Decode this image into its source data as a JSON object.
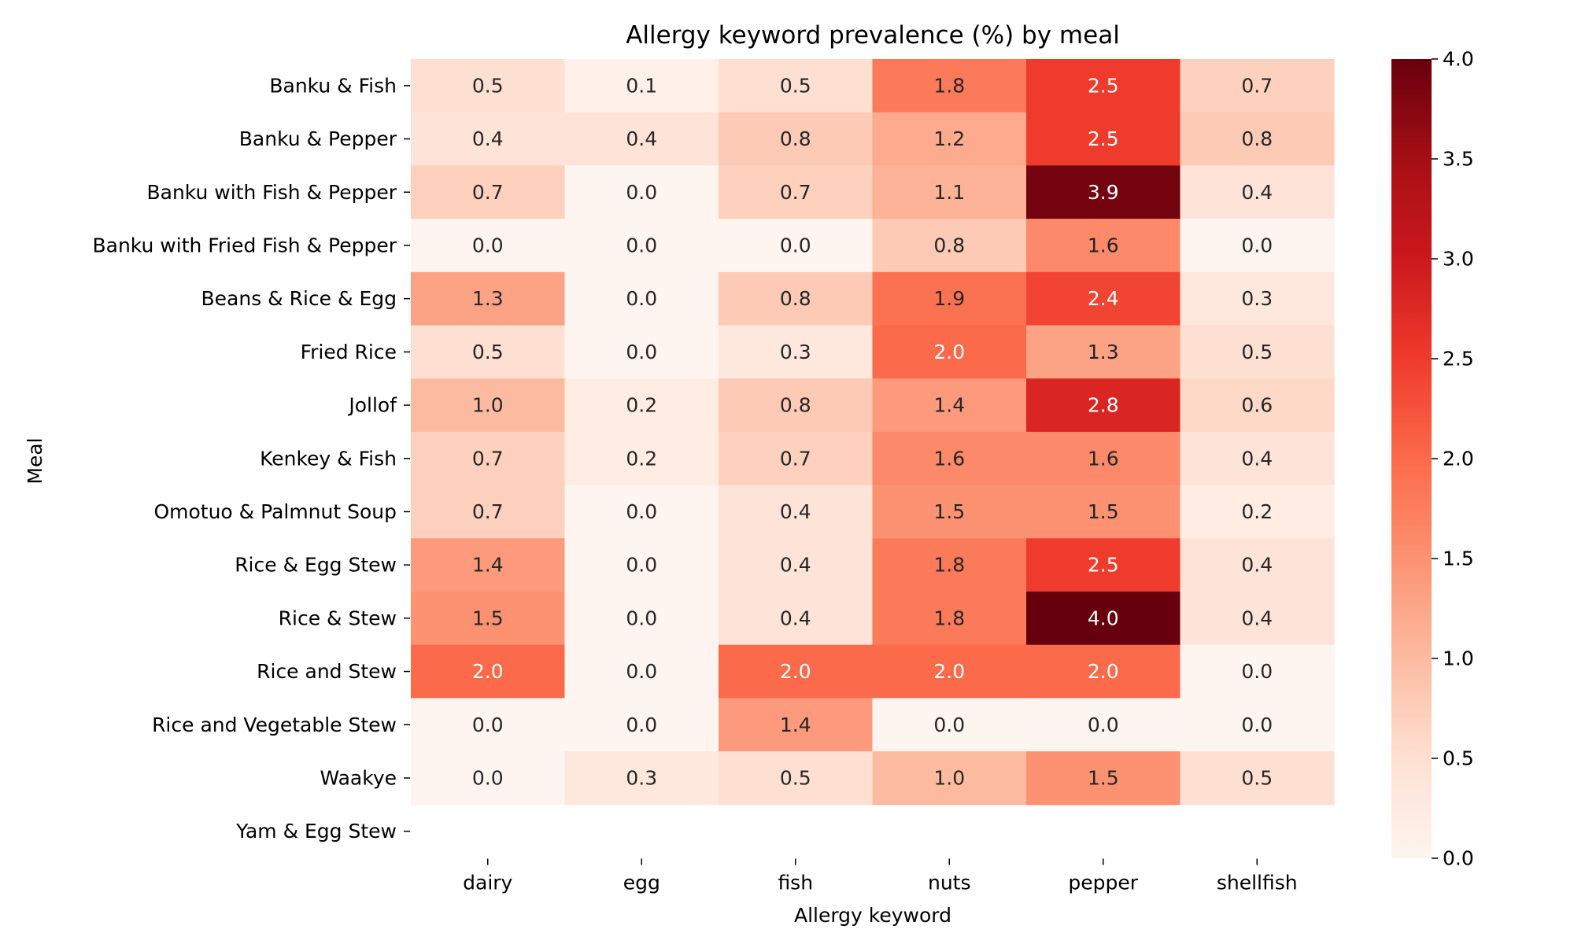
{
  "chart_data": {
    "type": "heatmap",
    "title": "Allergy keyword prevalence (%) by meal",
    "xlabel": "Allergy keyword",
    "ylabel": "Meal",
    "columns": [
      "dairy",
      "egg",
      "fish",
      "nuts",
      "pepper",
      "shellfish"
    ],
    "rows": [
      "Banku & Fish",
      "Banku & Pepper",
      "Banku with Fish & Pepper",
      "Banku with Fried Fish & Pepper",
      "Beans & Rice & Egg",
      "Fried Rice",
      "Jollof",
      "Kenkey & Fish",
      "Omotuo & Palmnut Soup",
      "Rice & Egg Stew",
      "Rice & Stew",
      "Rice and Stew",
      "Rice and Vegetable Stew",
      "Waakye",
      "Yam & Egg Stew"
    ],
    "values": [
      [
        0.5,
        0.1,
        0.5,
        1.8,
        2.5,
        0.7
      ],
      [
        0.4,
        0.4,
        0.8,
        1.2,
        2.5,
        0.8
      ],
      [
        0.7,
        0.0,
        0.7,
        1.1,
        3.9,
        0.4
      ],
      [
        0.0,
        0.0,
        0.0,
        0.8,
        1.6,
        0.0
      ],
      [
        1.3,
        0.0,
        0.8,
        1.9,
        2.4,
        0.3
      ],
      [
        0.5,
        0.0,
        0.3,
        2.0,
        1.3,
        0.5
      ],
      [
        1.0,
        0.2,
        0.8,
        1.4,
        2.8,
        0.6
      ],
      [
        0.7,
        0.2,
        0.7,
        1.6,
        1.6,
        0.4
      ],
      [
        0.7,
        0.0,
        0.4,
        1.5,
        1.5,
        0.2
      ],
      [
        1.4,
        0.0,
        0.4,
        1.8,
        2.5,
        0.4
      ],
      [
        1.5,
        0.0,
        0.4,
        1.8,
        4.0,
        0.4
      ],
      [
        2.0,
        0.0,
        2.0,
        2.0,
        2.0,
        0.0
      ],
      [
        0.0,
        0.0,
        1.4,
        0.0,
        0.0,
        0.0
      ],
      [
        0.0,
        0.3,
        0.5,
        1.0,
        1.5,
        0.5
      ],
      [
        null,
        null,
        null,
        null,
        null,
        null
      ]
    ],
    "colormap": "Reds",
    "vmin": 0.0,
    "vmax": 4.0,
    "colorbar_ticks": [
      "0.0",
      "0.5",
      "1.0",
      "1.5",
      "2.0",
      "2.5",
      "3.0",
      "3.5",
      "4.0"
    ]
  }
}
